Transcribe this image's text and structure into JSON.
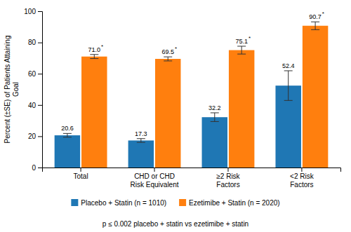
{
  "chart_data": {
    "type": "bar",
    "categories": [
      "Total",
      "CHD or CHD\nRisk Equivalent",
      "≥2 Risk\nFactors",
      "<2 Risk\nFactors"
    ],
    "series": [
      {
        "name": "Placebo + Statin (n = 1010)",
        "values": [
          20.6,
          17.3,
          32.2,
          52.4
        ],
        "errors": [
          1.2,
          1.2,
          2.8,
          9.5
        ]
      },
      {
        "name": "Ezetimibe + Statin (n = 2020)",
        "values": [
          71.0,
          69.5,
          75.1,
          90.7
        ],
        "value_labels": [
          "71.0",
          "69.5",
          "75.1",
          "90.7"
        ],
        "errors": [
          1.3,
          1.3,
          2.5,
          2.5
        ],
        "annotation": "*"
      }
    ],
    "ylim": [
      0,
      100
    ],
    "yticks": [
      0,
      20,
      40,
      60,
      80,
      100
    ],
    "ylabel": "Percent (±SE) of Patients Attaining\nGoal",
    "footnote": "p ≤ 0.002 placebo + statin vs ezetimibe + statin",
    "data_labels": true,
    "legend": "bottom"
  }
}
